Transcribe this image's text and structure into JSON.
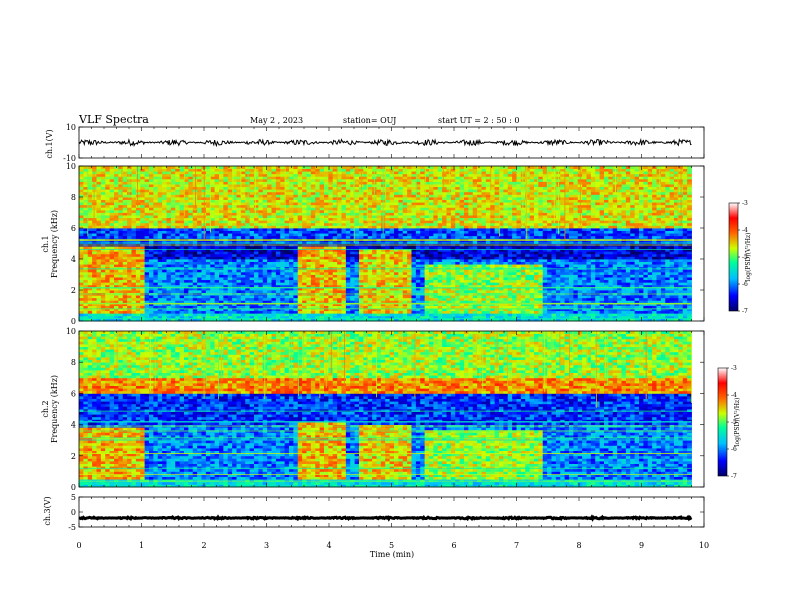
{
  "header": {
    "title": "VLF Spectra",
    "date": "May 2 , 2023",
    "station": "station= OUJ",
    "start": "start UT = 2 : 50 : 0"
  },
  "chart_data": {
    "type": "heatmap",
    "xlabel": "Time (min)",
    "xlim": [
      0,
      10
    ],
    "xticks": [
      "0",
      "1",
      "2",
      "3",
      "4",
      "5",
      "6",
      "7",
      "8",
      "9",
      "10"
    ],
    "panels": [
      {
        "id": "ch1_waveform",
        "type": "line",
        "ylabel": "ch.1(V)",
        "ylim": [
          -10,
          10
        ],
        "yticks": [
          "10",
          "-10"
        ],
        "baseline_v": 0,
        "noise_amplitude_v": 2,
        "data_end_min": 9.8
      },
      {
        "id": "ch1_spectrogram",
        "type": "heatmap",
        "ylabel_top": "ch.1",
        "ylabel": "Frequency (kHz)",
        "ylim": [
          0,
          10
        ],
        "yticks": [
          "0",
          "2",
          "4",
          "6",
          "8",
          "10"
        ],
        "data_end_min": 9.8,
        "bands": [
          {
            "fmin": 6.0,
            "fmax": 10.0,
            "level": -4.6
          },
          {
            "fmin": 5.0,
            "fmax": 6.0,
            "level": -6.2
          },
          {
            "fmin": 4.0,
            "fmax": 5.0,
            "level": -6.6
          },
          {
            "fmin": 0.5,
            "fmax": 4.0,
            "level": -6.0
          },
          {
            "fmin": 0.0,
            "fmax": 0.5,
            "level": -5.5
          }
        ],
        "events": [
          {
            "t0": 0.0,
            "t1": 1.05,
            "fmin": 0.5,
            "fmax": 4.8,
            "level": -4.4
          },
          {
            "t0": 3.5,
            "t1": 4.3,
            "fmin": 0.5,
            "fmax": 4.8,
            "level": -4.4
          },
          {
            "t0": 4.5,
            "t1": 5.3,
            "fmin": 0.5,
            "fmax": 4.6,
            "level": -4.5
          },
          {
            "t0": 5.5,
            "t1": 7.4,
            "fmin": 0.5,
            "fmax": 3.6,
            "level": -4.8
          }
        ]
      },
      {
        "id": "ch2_spectrogram",
        "type": "heatmap",
        "ylabel_top": "ch.2",
        "ylabel": "Frequency (kHz)",
        "ylim": [
          0,
          10
        ],
        "yticks": [
          "0",
          "2",
          "4",
          "6",
          "8",
          "10"
        ],
        "data_end_min": 9.8,
        "bands": [
          {
            "fmin": 7.0,
            "fmax": 10.0,
            "level": -4.8
          },
          {
            "fmin": 6.0,
            "fmax": 7.0,
            "level": -4.2
          },
          {
            "fmin": 4.0,
            "fmax": 6.0,
            "level": -6.3
          },
          {
            "fmin": 0.5,
            "fmax": 4.0,
            "level": -6.0
          },
          {
            "fmin": 0.0,
            "fmax": 0.5,
            "level": -5.5
          }
        ],
        "events": [
          {
            "t0": 0.0,
            "t1": 1.05,
            "fmin": 0.5,
            "fmax": 3.8,
            "level": -4.4
          },
          {
            "t0": 3.5,
            "t1": 4.3,
            "fmin": 0.5,
            "fmax": 4.2,
            "level": -4.4
          },
          {
            "t0": 4.5,
            "t1": 5.3,
            "fmin": 0.5,
            "fmax": 4.0,
            "level": -4.5
          },
          {
            "t0": 5.5,
            "t1": 7.4,
            "fmin": 0.5,
            "fmax": 3.6,
            "level": -4.8
          }
        ]
      },
      {
        "id": "ch3_waveform",
        "type": "line",
        "ylabel": "ch.3(V)",
        "ylim": [
          -5,
          5
        ],
        "yticks": [
          "5",
          "0",
          "-5"
        ],
        "baseline_v": -2,
        "noise_amplitude_v": 0.3,
        "data_end_min": 9.8
      }
    ],
    "colorbar": {
      "label": "log(PSD)(V²/Hz)",
      "range": [
        -7,
        -3
      ],
      "ticks": [
        "-3",
        "-4",
        "-5",
        "-6",
        "-7"
      ],
      "colormap": [
        "#000066",
        "#0000ff",
        "#00bfff",
        "#00ff99",
        "#ccff00",
        "#ff6600",
        "#ff0000",
        "#ffffff"
      ]
    }
  }
}
